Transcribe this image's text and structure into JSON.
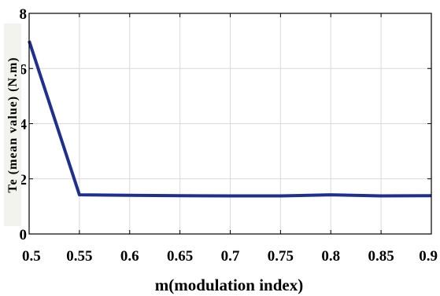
{
  "chart_data": {
    "type": "line",
    "title": "",
    "xlabel": "m(modulation index)",
    "ylabel": "Te (mean value) (N.m)",
    "xlim": [
      0.5,
      0.9
    ],
    "ylim": [
      0,
      8
    ],
    "xticks": [
      "0.5",
      "0.55",
      "0.6",
      "0.65",
      "0.7",
      "0.75",
      "0.8",
      "0.85",
      "0.9"
    ],
    "yticks": [
      "0",
      "2",
      "4",
      "6",
      "8"
    ],
    "grid": true,
    "line_color": "#1f2f8f",
    "series": [
      {
        "x": [
          0.5,
          0.55,
          0.6,
          0.65,
          0.7,
          0.75,
          0.8,
          0.85,
          0.9
        ],
        "values": [
          7.0,
          1.42,
          1.4,
          1.39,
          1.38,
          1.38,
          1.42,
          1.38,
          1.39
        ]
      }
    ]
  }
}
